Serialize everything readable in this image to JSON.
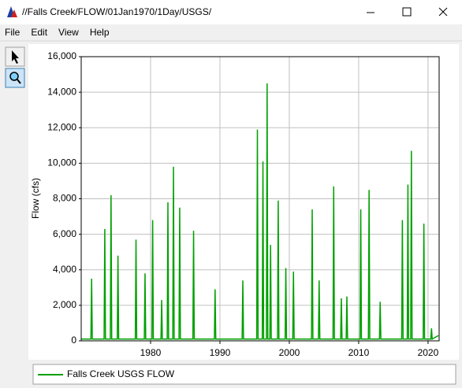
{
  "window_title": "//Falls Creek/FLOW/01Jan1970/1Day/USGS/",
  "menu": [
    "File",
    "Edit",
    "View",
    "Help"
  ],
  "chart_data": {
    "type": "line",
    "ylabel": "Flow (cfs)",
    "xlim": [
      1970,
      2021.6
    ],
    "xticks": [
      1980,
      1990,
      2000,
      2010,
      2020
    ],
    "ylim": [
      0,
      16000
    ],
    "yticks": [
      {
        "value": 0,
        "label": "0"
      },
      {
        "value": 2000,
        "label": "2,000"
      },
      {
        "value": 4000,
        "label": "4,000"
      },
      {
        "value": 6000,
        "label": "6,000"
      },
      {
        "value": 8000,
        "label": "8,000"
      },
      {
        "value": 10000,
        "label": "10,000"
      },
      {
        "value": 12000,
        "label": "12,000"
      },
      {
        "value": 14000,
        "label": "14,000"
      },
      {
        "value": 16000,
        "label": "16,000"
      }
    ],
    "grid": true,
    "series": [
      {
        "name": "Falls Creek USGS FLOW",
        "color": "#00a000",
        "x": [
          1970,
          1971.4,
          1971.5,
          1971.6,
          1973.3,
          1973.4,
          1973.5,
          1974.2,
          1974.3,
          1974.4,
          1975.2,
          1975.3,
          1975.4,
          1977.8,
          1977.9,
          1978,
          1979.1,
          1979.2,
          1979.3,
          1980.2,
          1980.3,
          1980.4,
          1981.5,
          1981.6,
          1981.7,
          1982.4,
          1982.5,
          1982.6,
          1983.2,
          1983.3,
          1983.4,
          1984.1,
          1984.2,
          1984.3,
          1986.1,
          1986.2,
          1986.3,
          1989.2,
          1989.3,
          1989.4,
          1993.2,
          1993.3,
          1993.4,
          1995.3,
          1995.4,
          1995.5,
          1996.1,
          1996.2,
          1996.3,
          1996.7,
          1996.8,
          1996.9,
          1997.2,
          1997.3,
          1997.4,
          1998.3,
          1998.4,
          1998.5,
          1999.4,
          1999.5,
          1999.6,
          2000.5,
          2000.6,
          2000.7,
          2003.2,
          2003.3,
          2003.4,
          2004.2,
          2004.3,
          2004.4,
          2006.3,
          2006.4,
          2006.5,
          2007.4,
          2007.5,
          2007.6,
          2008.2,
          2008.3,
          2008.4,
          2010.2,
          2010.3,
          2010.4,
          2011.4,
          2011.5,
          2011.6,
          2013,
          2013.1,
          2013.2,
          2016.2,
          2016.3,
          2016.4,
          2017,
          2017.1,
          2017.2,
          2017.5,
          2017.6,
          2017.7,
          2019.3,
          2019.4,
          2019.5,
          2020.4,
          2020.5,
          2020.6,
          2021.5
        ],
        "values": [
          100,
          100,
          3500,
          100,
          100,
          6300,
          100,
          100,
          8200,
          100,
          100,
          4800,
          100,
          100,
          5700,
          100,
          100,
          3800,
          100,
          100,
          6800,
          100,
          100,
          2300,
          100,
          100,
          7800,
          100,
          100,
          9800,
          100,
          100,
          7500,
          100,
          100,
          6200,
          100,
          100,
          2900,
          100,
          100,
          3400,
          100,
          100,
          11900,
          100,
          100,
          10100,
          100,
          100,
          14500,
          100,
          100,
          5400,
          100,
          100,
          7900,
          100,
          100,
          4100,
          100,
          100,
          3900,
          100,
          100,
          7400,
          100,
          100,
          3400,
          100,
          100,
          8700,
          100,
          100,
          2400,
          100,
          100,
          2500,
          100,
          100,
          7400,
          100,
          100,
          8500,
          100,
          100,
          2200,
          100,
          100,
          6800,
          100,
          100,
          8800,
          100,
          100,
          10700,
          100,
          100,
          6600,
          100,
          100,
          700,
          100,
          300
        ]
      }
    ]
  }
}
